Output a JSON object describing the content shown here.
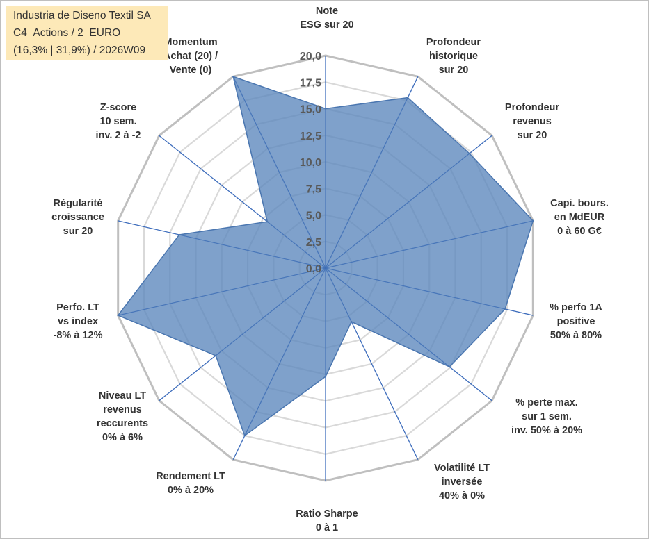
{
  "title_box": {
    "line1": "Industria de Diseno Textil SA",
    "line2": "C4_Actions / 2_EURO",
    "line3": "(16,3% | 31,9%) / 2026W09"
  },
  "colors": {
    "fill": "#5b86bd",
    "fill_opacity": 0.78,
    "outline": "#4a76b0",
    "spokes": "#4472c4",
    "outer_grid": "#bfbfbf",
    "inner_grid": "#d9d9d9"
  },
  "chart_data": {
    "type": "radar",
    "rmin": 0,
    "rmax": 20,
    "tick_labels": [
      "0,0",
      "2,5",
      "5,0",
      "7,5",
      "10,0",
      "12,5",
      "15,0",
      "17,5",
      "20,0"
    ],
    "tick_values": [
      0,
      2.5,
      5,
      7.5,
      10,
      12.5,
      15,
      17.5,
      20
    ],
    "grid_levels": [
      2.5,
      5,
      7.5,
      10,
      12.5,
      15,
      17.5,
      20
    ],
    "grid": true,
    "axes": [
      {
        "lines": [
          "Note",
          "ESG sur 20"
        ],
        "value": 15.0
      },
      {
        "lines": [
          "Profondeur",
          "historique",
          "sur 20"
        ],
        "value": 17.8
      },
      {
        "lines": [
          "Profondeur",
          "revenus",
          "sur 20"
        ],
        "value": 17.3
      },
      {
        "lines": [
          "Capi. bours.",
          "en MdEUR",
          "0 à 60 G€"
        ],
        "value": 20.0
      },
      {
        "lines": [
          "% perfo 1A",
          "positive",
          "50% à 80%"
        ],
        "value": 17.3
      },
      {
        "lines": [
          "% perte max.",
          "sur 1 sem.",
          "inv. 50% à 20%"
        ],
        "value": 14.9
      },
      {
        "lines": [
          "Volatilité LT",
          "inversée",
          "40% à 0%"
        ],
        "value": 5.6
      },
      {
        "lines": [
          "Ratio Sharpe",
          "0 à 1"
        ],
        "value": 10.2
      },
      {
        "lines": [
          "Rendement LT",
          "0% à 20%"
        ],
        "value": 17.5
      },
      {
        "lines": [
          "Niveau LT",
          "revenus",
          "reccurents",
          "0% à 6%"
        ],
        "value": 13.2
      },
      {
        "lines": [
          "Perfo. LT",
          "vs index",
          "-8% à 12%"
        ],
        "value": 20.0
      },
      {
        "lines": [
          "Régularité",
          "croissance",
          "sur 20"
        ],
        "value": 14.1
      },
      {
        "lines": [
          "Z-score",
          "10 sem.",
          "inv. 2 à -2"
        ],
        "value": 7.0
      },
      {
        "lines": [
          "Momentum",
          "Achat (20) /",
          "Vente (0)"
        ],
        "value": 20.0
      }
    ]
  }
}
